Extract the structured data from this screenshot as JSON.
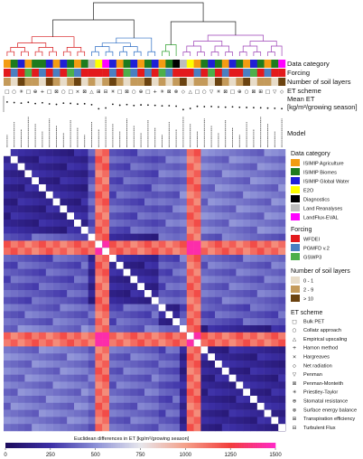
{
  "chart_data": {
    "type": "heatmap",
    "n_models": 40,
    "row_labels": {
      "data_category": "Data category",
      "forcing": "Forcing",
      "soil_layers": "Number of soil layers",
      "et_scheme": "ET scheme",
      "mean_et": "Mean ET",
      "mean_et_units": "[kg/m²/growing season]",
      "model": "Model"
    },
    "colorbar": {
      "title": "Euclidean differences in ET [kg/m²/growing season]",
      "ticks": [
        0,
        250,
        500,
        750,
        1000,
        1250,
        1500
      ],
      "range": [
        0,
        1500
      ],
      "colors": [
        "#1d0c5c",
        "#3c2fa6",
        "#8b8fd6",
        "#e7e7ec",
        "#f4a08a",
        "#f23c3c",
        "#ff29c6"
      ]
    },
    "outlier_models": [
      13,
      14,
      26,
      27
    ],
    "clusters": [
      {
        "name": "red",
        "color": "#d7191c",
        "start": 0,
        "end": 12
      },
      {
        "name": "blue",
        "color": "#2b6cc4",
        "start": 12,
        "end": 22
      },
      {
        "name": "green",
        "color": "#2ca02c",
        "start": 22,
        "end": 25
      },
      {
        "name": "purple",
        "color": "#9b3fb5",
        "start": 25,
        "end": 40
      }
    ],
    "mean_et_dots": [
      0.62,
      0.58,
      0.55,
      0.6,
      0.52,
      0.57,
      0.5,
      0.47,
      0.55,
      0.53,
      0.49,
      0.51,
      0.45,
      0.2,
      0.25,
      0.48,
      0.42,
      0.46,
      0.4,
      0.44,
      0.43,
      0.41,
      0.38,
      0.39,
      0.36,
      0.15,
      0.22,
      0.35,
      0.33,
      0.34,
      0.31,
      0.3,
      0.32,
      0.29,
      0.28,
      0.27,
      0.26,
      0.24,
      0.23,
      0.21
    ],
    "legend": {
      "data_category": {
        "title": "Data category",
        "items": [
          {
            "label": "ISIMIP Agriculture",
            "color": "#f39c12"
          },
          {
            "label": "ISIMIP Biomes",
            "color": "#1e7b1e"
          },
          {
            "label": "ISIMIP Global Water",
            "color": "#1f1fd6"
          },
          {
            "label": "E2O",
            "color": "#ffff00"
          },
          {
            "label": "Diagnostics",
            "color": "#000000"
          },
          {
            "label": "Land Reanalyses",
            "color": "#bdbdbd"
          },
          {
            "label": "LandFlux-EVAL",
            "color": "#ff00ff"
          }
        ]
      },
      "forcing": {
        "title": "Forcing",
        "items": [
          {
            "label": "WFDEI",
            "color": "#e31a1c"
          },
          {
            "label": "PGMFD v.2",
            "color": "#4a7fc1"
          },
          {
            "label": "GSWP3",
            "color": "#4daf4a"
          }
        ]
      },
      "soil_layers": {
        "title": "Number of soil layers",
        "items": [
          {
            "label": "0 - 1",
            "color": "#e8dcc8"
          },
          {
            "label": "2 - 9",
            "color": "#c49a5a"
          },
          {
            "label": "> 10",
            "color": "#6b4310"
          }
        ]
      },
      "et_scheme": {
        "title": "ET scheme",
        "items": [
          {
            "label": "Bulk PET",
            "symbol": "□"
          },
          {
            "label": "Collatz approach",
            "symbol": "○"
          },
          {
            "label": "Empirical upscaling",
            "symbol": "△"
          },
          {
            "label": "Hamon method",
            "symbol": "+"
          },
          {
            "label": "Hargreaves",
            "symbol": "×"
          },
          {
            "label": "Net radiation",
            "symbol": "◇"
          },
          {
            "label": "Penman",
            "symbol": "▽"
          },
          {
            "label": "Penman-Monteith",
            "symbol": "⊠"
          },
          {
            "label": "Priestley-Taylor",
            "symbol": "✳"
          },
          {
            "label": "Stomatal resistance",
            "symbol": "⊕"
          },
          {
            "label": "Surface energy balance",
            "symbol": "⊗"
          },
          {
            "label": "Transpiration efficiency",
            "symbol": "⊞"
          },
          {
            "label": "Turbulent Flux",
            "symbol": "⊟"
          }
        ]
      }
    }
  }
}
